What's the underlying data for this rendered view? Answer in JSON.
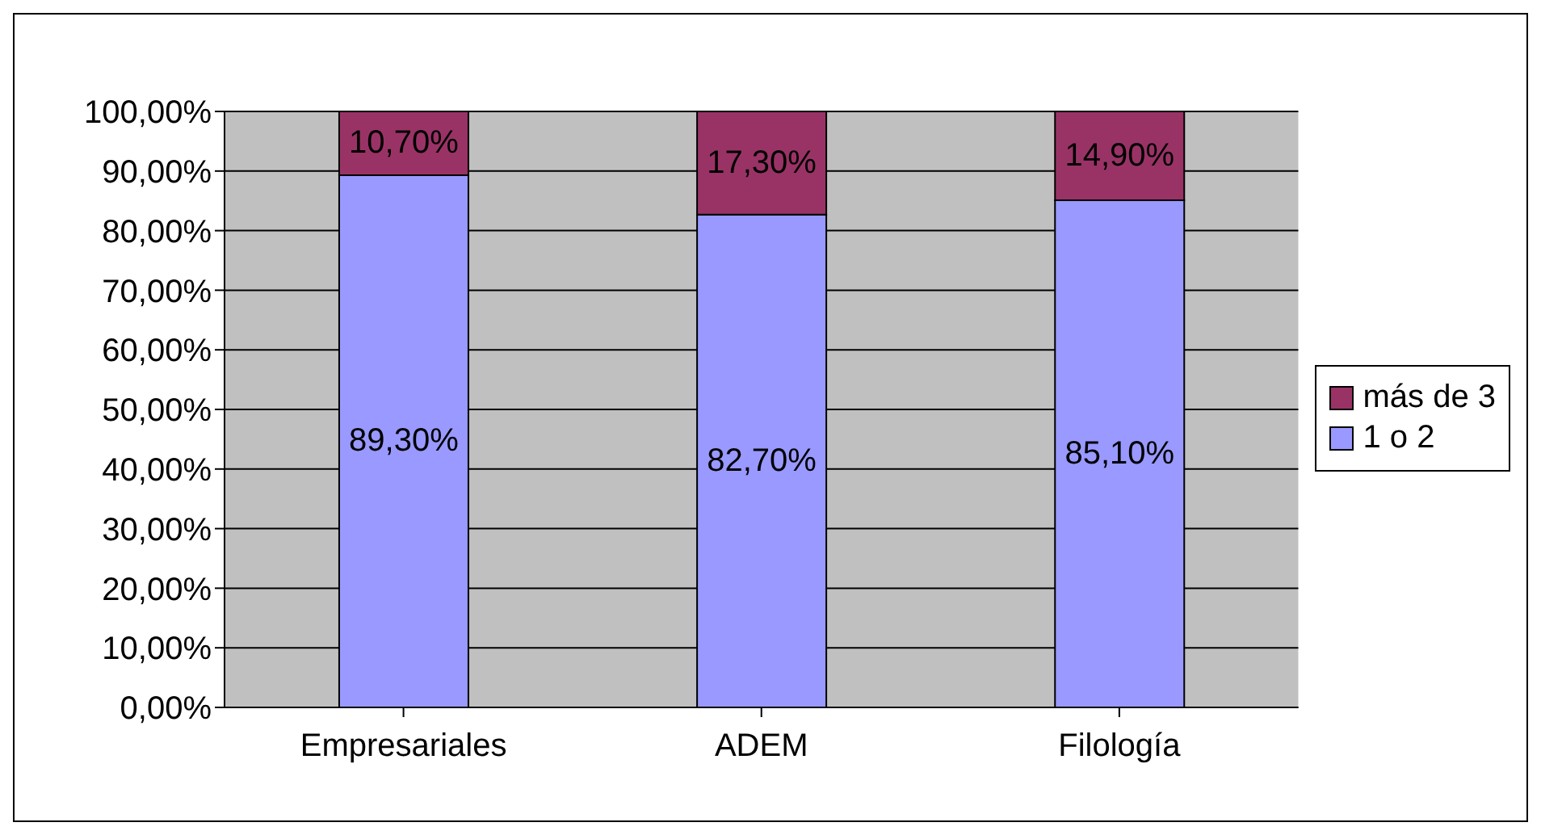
{
  "chart_data": {
    "type": "bar",
    "stacked": true,
    "categories": [
      "Empresariales",
      "ADEM",
      "Filología"
    ],
    "series": [
      {
        "name": "1 o 2",
        "color": "#9999ff",
        "values": [
          89.3,
          82.7,
          85.1
        ],
        "value_labels": [
          "89,30%",
          "82,70%",
          "85,10%"
        ]
      },
      {
        "name": "más de 3",
        "color": "#993366",
        "values": [
          10.7,
          17.3,
          14.9
        ],
        "value_labels": [
          "10,70%",
          "17,30%",
          "14,90%"
        ]
      }
    ],
    "ylim": [
      0,
      100
    ],
    "yticks": [
      {
        "value": 0,
        "label": "0,00%"
      },
      {
        "value": 10,
        "label": "10,00%"
      },
      {
        "value": 20,
        "label": "20,00%"
      },
      {
        "value": 30,
        "label": "30,00%"
      },
      {
        "value": 40,
        "label": "40,00%"
      },
      {
        "value": 50,
        "label": "50,00%"
      },
      {
        "value": 60,
        "label": "60,00%"
      },
      {
        "value": 70,
        "label": "70,00%"
      },
      {
        "value": 80,
        "label": "80,00%"
      },
      {
        "value": 90,
        "label": "90,00%"
      },
      {
        "value": 100,
        "label": "100,00%"
      }
    ],
    "grid": "y",
    "legend": "right"
  }
}
